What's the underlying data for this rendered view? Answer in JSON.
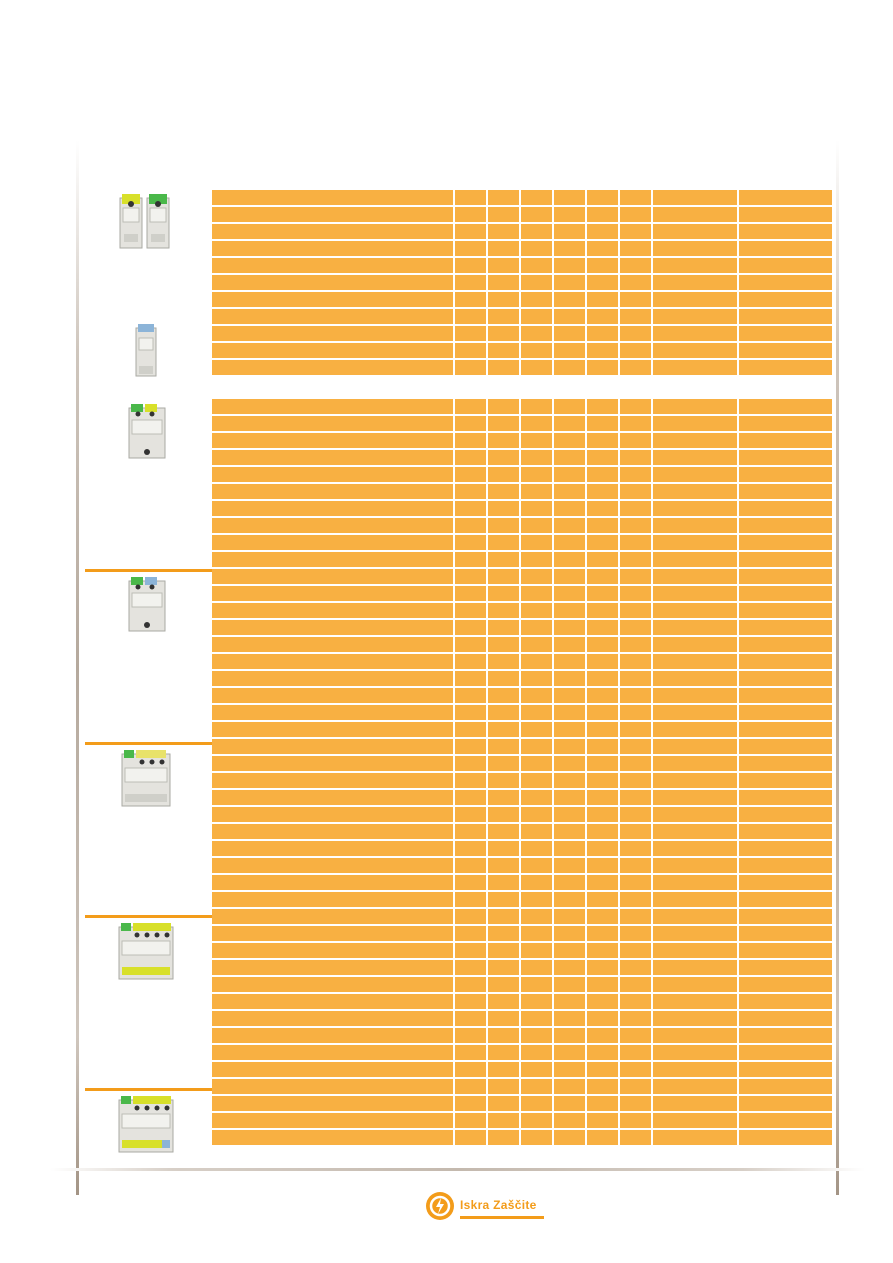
{
  "footer": {
    "brand": "Iskra Zaščite"
  },
  "colors": {
    "cell": "#f8b042",
    "accent": "#f39c1a"
  },
  "table_top": {
    "rows": 11
  },
  "table_bottom": {
    "rows": 44
  },
  "devices": [
    "surge-protector-1p-pair",
    "surge-protector-1p-blue",
    "surge-protector-2p",
    "surge-protector-2p-blue",
    "surge-protector-3p",
    "surge-protector-4p",
    "surge-protector-4p-blue"
  ]
}
